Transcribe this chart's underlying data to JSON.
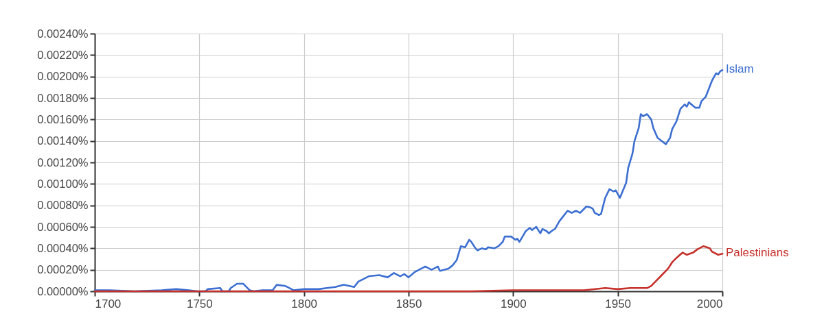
{
  "chart_data": {
    "type": "line",
    "xlim": [
      1700,
      2000
    ],
    "xticks": [
      1700,
      1750,
      1800,
      1850,
      1900,
      1950,
      2000
    ],
    "ylim": [
      0,
      0.0024
    ],
    "yticks": [
      {
        "value": 0,
        "label": "0.00000%"
      },
      {
        "value": 0.0002,
        "label": "0.00020%"
      },
      {
        "value": 0.0004,
        "label": "0.00040%"
      },
      {
        "value": 0.0006,
        "label": "0.00060%"
      },
      {
        "value": 0.0008,
        "label": "0.00080%"
      },
      {
        "value": 0.001,
        "label": "0.00100%"
      },
      {
        "value": 0.0012,
        "label": "0.00120%"
      },
      {
        "value": 0.0014,
        "label": "0.00140%"
      },
      {
        "value": 0.0016,
        "label": "0.00160%"
      },
      {
        "value": 0.0018,
        "label": "0.00180%"
      },
      {
        "value": 0.002,
        "label": "0.00200%"
      },
      {
        "value": 0.0022,
        "label": "0.00220%"
      },
      {
        "value": 0.0024,
        "label": "0.00240%"
      }
    ],
    "grid": true,
    "series": [
      {
        "name": "Islam",
        "color": "#3c6fd1",
        "x": [
          1700,
          1707,
          1719,
          1732,
          1739,
          1745,
          1749,
          1753,
          1754,
          1760,
          1761,
          1764,
          1765,
          1768,
          1771,
          1774,
          1776,
          1780,
          1785,
          1787,
          1791,
          1795,
          1800,
          1807,
          1811,
          1815,
          1819,
          1824,
          1826,
          1831,
          1836,
          1840,
          1843,
          1846,
          1848,
          1850,
          1853,
          1855,
          1858,
          1861,
          1864,
          1865,
          1869,
          1871,
          1873,
          1875,
          1877,
          1879,
          1880,
          1882,
          1883,
          1885,
          1887,
          1888,
          1891,
          1893,
          1895,
          1896,
          1899,
          1901,
          1902,
          1903,
          1906,
          1908,
          1909,
          1911,
          1913,
          1914,
          1916,
          1917,
          1919,
          1920,
          1922,
          1924,
          1926,
          1928,
          1930,
          1932,
          1933,
          1935,
          1937,
          1938,
          1939,
          1941,
          1942,
          1944,
          1946,
          1948,
          1949,
          1951,
          1954,
          1955,
          1957,
          1958,
          1960,
          1961,
          1962,
          1964,
          1966,
          1967,
          1969,
          1971,
          1973,
          1975,
          1976,
          1978,
          1980,
          1982,
          1983,
          1984,
          1987,
          1989,
          1990,
          1992,
          1995,
          1997,
          1998,
          1999,
          2000
        ],
        "values": [
          1e-05,
          1e-05,
          0.0,
          1e-05,
          2e-05,
          1e-05,
          0.0,
          0.0,
          2e-05,
          3e-05,
          0.0,
          0.0,
          3e-05,
          7e-05,
          7e-05,
          1e-05,
          0.0,
          1e-05,
          1e-05,
          6e-05,
          5e-05,
          1e-05,
          2e-05,
          2e-05,
          3e-05,
          4e-05,
          6e-05,
          4e-05,
          9e-05,
          0.00014,
          0.00015,
          0.00013,
          0.00017,
          0.00014,
          0.00016,
          0.00013,
          0.00018,
          0.0002,
          0.00023,
          0.0002,
          0.00023,
          0.00019,
          0.00021,
          0.00024,
          0.00029,
          0.00042,
          0.00041,
          0.00048,
          0.00046,
          0.0004,
          0.00038,
          0.0004,
          0.00039,
          0.00041,
          0.0004,
          0.00042,
          0.00046,
          0.00051,
          0.00051,
          0.00048,
          0.00049,
          0.00046,
          0.00056,
          0.00059,
          0.00057,
          0.0006,
          0.00054,
          0.00058,
          0.00056,
          0.00054,
          0.00057,
          0.00058,
          0.00065,
          0.0007,
          0.00075,
          0.00073,
          0.00075,
          0.00073,
          0.00075,
          0.00079,
          0.00078,
          0.00077,
          0.00073,
          0.00071,
          0.00072,
          0.00087,
          0.00095,
          0.00093,
          0.00094,
          0.00087,
          0.00101,
          0.00115,
          0.00128,
          0.0014,
          0.00152,
          0.00165,
          0.00163,
          0.00165,
          0.0016,
          0.00152,
          0.00143,
          0.0014,
          0.00137,
          0.00143,
          0.00151,
          0.00158,
          0.0017,
          0.00174,
          0.00172,
          0.00176,
          0.00171,
          0.00171,
          0.00177,
          0.00181,
          0.00196,
          0.00203,
          0.00202,
          0.00205,
          0.00206
        ]
      },
      {
        "name": "Palestinians",
        "color": "#c5302b",
        "x": [
          1700,
          1750,
          1800,
          1850,
          1880,
          1900,
          1920,
          1934,
          1944,
          1950,
          1956,
          1964,
          1966,
          1968,
          1971,
          1974,
          1976,
          1978,
          1981,
          1983,
          1986,
          1988,
          1991,
          1994,
          1995,
          1998,
          2000
        ],
        "values": [
          0.0,
          0.0,
          0.0,
          0.0,
          0.0,
          1e-05,
          1e-05,
          1e-05,
          3e-05,
          2e-05,
          3e-05,
          3e-05,
          5e-05,
          9e-05,
          0.00015,
          0.00021,
          0.00027,
          0.00031,
          0.00036,
          0.00034,
          0.00036,
          0.00039,
          0.00042,
          0.0004,
          0.00037,
          0.00034,
          0.00035
        ]
      }
    ]
  }
}
